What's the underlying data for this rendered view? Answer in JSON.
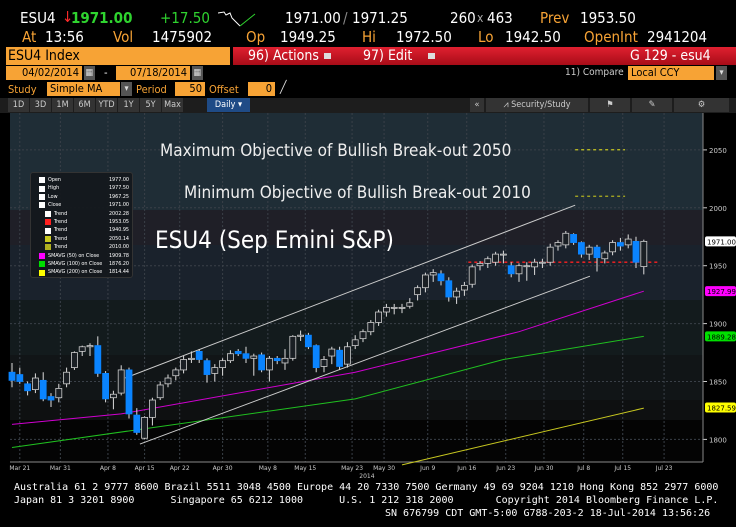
{
  "header": {
    "ticker": "ESU4",
    "direction_icon": "arrow-down",
    "last": "1971.00",
    "change": "+17.50",
    "bid_ask": "1971.00",
    "ask": "1971.25",
    "size": "260",
    "size_x": "x",
    "size2": "463",
    "prev_label": "Prev",
    "prev": "1953.50",
    "at_label": "At",
    "time": "13:56",
    "vol_label": "Vol",
    "vol": "1475902",
    "op_label": "Op",
    "op": "1949.25",
    "hi_label": "Hi",
    "hi": "1972.50",
    "lo_label": "Lo",
    "lo": "1942.50",
    "oi_label": "OpenInt",
    "oi": "2941204"
  },
  "bar": {
    "security": "ESU4 Index",
    "actions": "96) Actions",
    "edit": "97) Edit",
    "page": "G 129 - esu4"
  },
  "dates": {
    "start": "04/02/2014",
    "sep": "-",
    "end": "07/18/2014",
    "compare_label": "11) Compare",
    "compare_value": "Local CCY"
  },
  "study": {
    "label": "Study",
    "value": "Simple MA",
    "period_label": "Period",
    "period": "50",
    "offset_label": "Offset",
    "offset": "0"
  },
  "toolbar": {
    "ranges": [
      "1D",
      "3D",
      "1M",
      "6M",
      "YTD",
      "1Y",
      "5Y",
      "Max"
    ],
    "frequency": "Daily",
    "collapse": "«",
    "security_study": "Security/Study"
  },
  "colors": {
    "up": "#1a1f24",
    "down": "#0a84ff",
    "sma50": "#d000d0",
    "sma100": "#20c020",
    "sma200": "#c8c820",
    "orange": "#f7a335",
    "red": "#e02030"
  },
  "chart_data": {
    "type": "candlestick",
    "annotations": [
      "Maximum Objective of Bullish Break-out 2050",
      "Minimum Objective of Bullish Break-out 2010",
      "ESU4 (Sep Emini S&P)"
    ],
    "ylim": [
      1775,
      2075
    ],
    "yticks": [
      1800,
      1850,
      1900,
      1950,
      2000,
      2050
    ],
    "xticks": [
      {
        "label": "Mar 21",
        "i": 1
      },
      {
        "label": "Mar 31",
        "i": 6.2
      },
      {
        "label": "Apr 8",
        "i": 12.3
      },
      {
        "label": "Apr 15",
        "i": 17
      },
      {
        "label": "Apr 22",
        "i": 21.5
      },
      {
        "label": "Apr 30",
        "i": 27
      },
      {
        "label": "May 8",
        "i": 32.8
      },
      {
        "label": "May 15",
        "i": 37.6
      },
      {
        "label": "May 23",
        "i": 43.6
      },
      {
        "label": "May 30",
        "i": 47.7
      },
      {
        "label": "Jun 9",
        "i": 53.3
      },
      {
        "label": "Jun 16",
        "i": 58.3
      },
      {
        "label": "Jun 23",
        "i": 63.3
      },
      {
        "label": "Jun 30",
        "i": 68.2
      },
      {
        "label": "Jul 8",
        "i": 73.3
      },
      {
        "label": "Jul 15",
        "i": 78.3
      },
      {
        "label": "Jul 23",
        "i": 83.6
      }
    ],
    "year_label": "2014",
    "ohlc": [
      [
        1858,
        1866,
        1845,
        1851
      ],
      [
        1856,
        1862,
        1848,
        1850
      ],
      [
        1848,
        1850,
        1838,
        1842
      ],
      [
        1843,
        1857,
        1840,
        1853
      ],
      [
        1851,
        1858,
        1833,
        1835
      ],
      [
        1837,
        1840,
        1828,
        1834
      ],
      [
        1836,
        1848,
        1832,
        1844
      ],
      [
        1848,
        1862,
        1845,
        1858
      ],
      [
        1862,
        1876,
        1860,
        1875
      ],
      [
        1876,
        1881,
        1872,
        1880
      ],
      [
        1880,
        1883,
        1872,
        1881
      ],
      [
        1881,
        1889,
        1854,
        1857
      ],
      [
        1857,
        1859,
        1832,
        1835
      ],
      [
        1836,
        1842,
        1826,
        1839
      ],
      [
        1840,
        1864,
        1838,
        1860
      ],
      [
        1860,
        1862,
        1818,
        1822
      ],
      [
        1821,
        1827,
        1804,
        1806
      ],
      [
        1801,
        1820,
        1800,
        1819
      ],
      [
        1819,
        1836,
        1812,
        1834
      ],
      [
        1836,
        1850,
        1834,
        1847
      ],
      [
        1848,
        1856,
        1845,
        1853
      ],
      [
        1855,
        1862,
        1851,
        1860
      ],
      [
        1860,
        1872,
        1857,
        1869
      ],
      [
        1869,
        1876,
        1866,
        1870
      ],
      [
        1876,
        1878,
        1866,
        1869
      ],
      [
        1868,
        1870,
        1849,
        1856
      ],
      [
        1857,
        1865,
        1850,
        1862
      ],
      [
        1862,
        1870,
        1855,
        1868
      ],
      [
        1868,
        1877,
        1866,
        1874
      ],
      [
        1876,
        1878,
        1872,
        1874
      ],
      [
        1874,
        1880,
        1866,
        1870
      ],
      [
        1870,
        1874,
        1855,
        1872
      ],
      [
        1873,
        1875,
        1858,
        1860
      ],
      [
        1860,
        1872,
        1850,
        1870
      ],
      [
        1870,
        1872,
        1865,
        1868
      ],
      [
        1866,
        1878,
        1860,
        1870
      ],
      [
        1870,
        1890,
        1868,
        1889
      ],
      [
        1889,
        1894,
        1885,
        1890
      ],
      [
        1890,
        1892,
        1878,
        1880
      ],
      [
        1881,
        1882,
        1858,
        1862
      ],
      [
        1863,
        1872,
        1858,
        1869
      ],
      [
        1872,
        1880,
        1865,
        1878
      ],
      [
        1877,
        1880,
        1860,
        1863
      ],
      [
        1865,
        1884,
        1862,
        1880
      ],
      [
        1881,
        1890,
        1878,
        1886
      ],
      [
        1887,
        1895,
        1884,
        1893
      ],
      [
        1893,
        1903,
        1890,
        1901
      ],
      [
        1901,
        1912,
        1898,
        1910
      ],
      [
        1910,
        1917,
        1906,
        1914
      ],
      [
        1914,
        1917,
        1908,
        1914
      ],
      [
        1914,
        1917,
        1909,
        1914
      ],
      [
        1915,
        1922,
        1913,
        1918
      ],
      [
        1925,
        1933,
        1920,
        1931
      ],
      [
        1931,
        1944,
        1927,
        1942
      ],
      [
        1942,
        1947,
        1936,
        1944
      ],
      [
        1943,
        1946,
        1933,
        1937
      ],
      [
        1937,
        1940,
        1919,
        1923
      ],
      [
        1923,
        1931,
        1917,
        1928
      ],
      [
        1929,
        1936,
        1924,
        1933
      ],
      [
        1934,
        1951,
        1931,
        1949
      ],
      [
        1950,
        1954,
        1946,
        1952
      ],
      [
        1952,
        1958,
        1948,
        1956
      ],
      [
        1953,
        1962,
        1950,
        1960
      ],
      [
        1960,
        1963,
        1952,
        1960
      ],
      [
        1950,
        1953,
        1940,
        1943
      ],
      [
        1943,
        1952,
        1936,
        1950
      ],
      [
        1950,
        1953,
        1937,
        1950
      ],
      [
        1949,
        1956,
        1942,
        1953
      ],
      [
        1953,
        1956,
        1948,
        1953
      ],
      [
        1953,
        1969,
        1950,
        1966
      ],
      [
        1967,
        1972,
        1963,
        1970
      ],
      [
        1968,
        1980,
        1965,
        1978
      ],
      [
        1977,
        1978,
        1968,
        1970
      ],
      [
        1970,
        1971,
        1957,
        1960
      ],
      [
        1960,
        1968,
        1955,
        1966
      ],
      [
        1966,
        1968,
        1945,
        1957
      ],
      [
        1956,
        1963,
        1952,
        1961
      ],
      [
        1962,
        1972,
        1959,
        1970
      ],
      [
        1970,
        1974,
        1963,
        1967
      ],
      [
        1968,
        1977,
        1965,
        1973
      ],
      [
        1971,
        1975,
        1948,
        1953
      ],
      [
        1949.25,
        1972.5,
        1942.5,
        1971
      ]
    ],
    "trendlines": [
      {
        "color": "#cccccc",
        "from": [
          14.5,
          1853
        ],
        "to": [
          72.2,
          2002.28
        ]
      },
      {
        "color": "#cccccc",
        "from": [
          16.4,
          1796
        ],
        "to": [
          74.1,
          1940.95
        ]
      },
      {
        "color": "#ff2020",
        "dash": true,
        "from": [
          58.5,
          1953.05
        ],
        "to": [
          83,
          1953.05
        ]
      },
      {
        "color": "#c8c820",
        "dash": true,
        "from": [
          72.2,
          2050.14
        ],
        "to": [
          78.6,
          2050.14
        ]
      },
      {
        "color": "#b0b020",
        "dash": true,
        "from": [
          72.2,
          2010
        ],
        "to": [
          78.6,
          2010
        ]
      }
    ],
    "sma": [
      {
        "name": "SMAVG (50) on Close",
        "color": "#d000d0",
        "points": [
          [
            0,
            1813
          ],
          [
            14,
            1822
          ],
          [
            44,
            1858
          ],
          [
            65,
            1893
          ],
          [
            81,
            1928
          ]
        ]
      },
      {
        "name": "SMAVG (100) on Close",
        "color": "#20c020",
        "points": [
          [
            0,
            1793
          ],
          [
            44,
            1835
          ],
          [
            63,
            1869
          ],
          [
            81,
            1889
          ]
        ]
      },
      {
        "name": "SMAVG (200) on Close",
        "color": "#c8c820",
        "points": [
          [
            50,
            1778
          ],
          [
            81,
            1827
          ]
        ]
      }
    ],
    "price_tags": [
      {
        "value": "1971.00",
        "price": 1971,
        "bg": "#ffffff"
      },
      {
        "value": "1927.99",
        "price": 1928,
        "bg": "#ff00ff"
      },
      {
        "value": "1889.28",
        "price": 1889,
        "bg": "#00e000"
      },
      {
        "value": "1827.59",
        "price": 1827.6,
        "bg": "#ffff00"
      }
    ],
    "legend": [
      {
        "label": "Open",
        "value": "1977.00",
        "swatch": "#ffffff"
      },
      {
        "label": "High",
        "value": "1977.50",
        "swatch": "#ffffff"
      },
      {
        "label": "Low",
        "value": "1967.25",
        "swatch": "#ffffff"
      },
      {
        "label": "Close",
        "value": "1971.00",
        "swatch": "#ffffff"
      },
      {
        "label": "Trend",
        "value": "2002.28",
        "swatch": "#ffffff"
      },
      {
        "label": "Trend",
        "value": "1953.05",
        "swatch": "#ff2020"
      },
      {
        "label": "Trend",
        "value": "1940.95",
        "swatch": "#ffffff"
      },
      {
        "label": "Trend",
        "value": "2050.14",
        "swatch": "#c8c820"
      },
      {
        "label": "Trend",
        "value": "2010.00",
        "swatch": "#b0b020"
      },
      {
        "label": "SMAVG (50) on Close",
        "value": "1909.78",
        "swatch": "#ff00ff"
      },
      {
        "label": "SMAVG (100) on Close",
        "value": "1876.20",
        "swatch": "#00e000"
      },
      {
        "label": "SMAVG (200) on Close",
        "value": "1814.44",
        "swatch": "#ffff00"
      }
    ]
  },
  "footer": {
    "line1": "Australia 61 2 9777 8600 Brazil 5511 3048 4500 Europe 44 20 7330 7500 Germany 49 69 9204 1210 Hong Kong 852 2977 6000",
    "line2": "Japan 81 3 3201 8900      Singapore 65 6212 1000      U.S. 1 212 318 2000       Copyright 2014 Bloomberg Finance L.P.",
    "line3": "SN 676799 CDT  GMT-5:00 G788-203-2 18-Jul-2014 13:56:26"
  }
}
